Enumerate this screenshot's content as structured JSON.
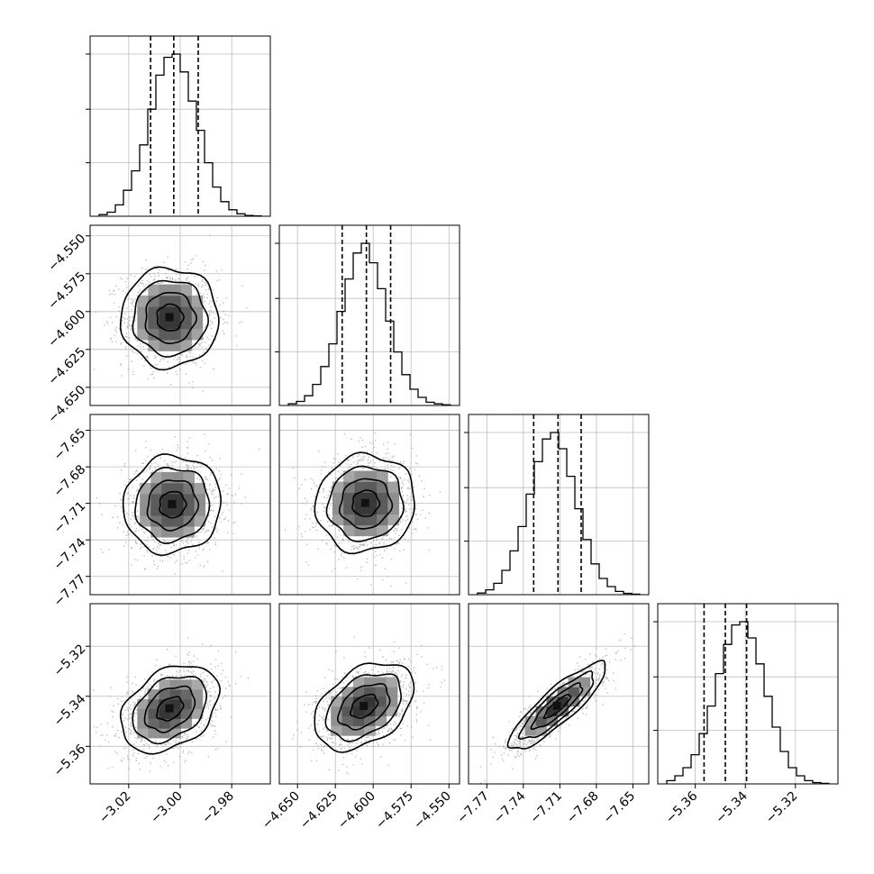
{
  "chart_data": {
    "type": "corner",
    "grid": true,
    "parameters": [
      {
        "range": [
          -3.035,
          -2.965
        ],
        "ticks": [
          -3.02,
          -3.0,
          -2.98
        ],
        "tick_labels": [
          "−3.02",
          "−3.00",
          "−2.98"
        ],
        "quantiles": [
          -3.0115,
          -3.0025,
          -2.993
        ],
        "hist_counts": [
          0.01,
          0.025,
          0.07,
          0.16,
          0.28,
          0.44,
          0.66,
          0.87,
          0.98,
          1.0,
          0.89,
          0.71,
          0.53,
          0.33,
          0.18,
          0.09,
          0.04,
          0.015,
          0.005,
          0.002
        ]
      },
      {
        "range": [
          -4.662,
          -4.543
        ],
        "ticks": [
          -4.65,
          -4.625,
          -4.6,
          -4.575,
          -4.55
        ],
        "tick_labels": [
          "−4.650",
          "−4.625",
          "−4.600",
          "−4.575",
          "−4.550"
        ],
        "quantiles": [
          -4.6205,
          -4.6045,
          -4.5885
        ],
        "hist_counts": [
          0.01,
          0.025,
          0.06,
          0.13,
          0.24,
          0.38,
          0.58,
          0.78,
          0.94,
          1.0,
          0.88,
          0.72,
          0.52,
          0.33,
          0.19,
          0.1,
          0.05,
          0.02,
          0.01,
          0.004
        ]
      },
      {
        "range": [
          -7.785,
          -7.637
        ],
        "ticks": [
          -7.77,
          -7.74,
          -7.71,
          -7.68,
          -7.65
        ],
        "tick_labels": [
          "−7.77",
          "−7.74",
          "−7.71",
          "−7.68",
          "−7.65"
        ],
        "quantiles": [
          -7.7315,
          -7.7115,
          -7.6925
        ],
        "hist_counts": [
          0.01,
          0.03,
          0.07,
          0.15,
          0.27,
          0.42,
          0.62,
          0.82,
          0.96,
          1.0,
          0.9,
          0.73,
          0.53,
          0.34,
          0.19,
          0.1,
          0.05,
          0.02,
          0.008,
          0.003
        ]
      },
      {
        "range": [
          -5.375,
          -5.303
        ],
        "ticks": [
          -5.36,
          -5.34,
          -5.32
        ],
        "tick_labels": [
          "−5.36",
          "−5.34",
          "−5.32"
        ],
        "quantiles": [
          -5.3565,
          -5.348,
          -5.3395
        ],
        "hist_counts": [
          0.02,
          0.05,
          0.1,
          0.18,
          0.31,
          0.48,
          0.68,
          0.86,
          0.98,
          1.0,
          0.9,
          0.74,
          0.54,
          0.35,
          0.2,
          0.1,
          0.05,
          0.02,
          0.008,
          0.003
        ]
      }
    ],
    "pairs": [
      {
        "row": 1,
        "col": 0,
        "center": [
          -3.004,
          -4.604
        ],
        "rho": 0.0
      },
      {
        "row": 2,
        "col": 0,
        "center": [
          -3.003,
          -7.711
        ],
        "rho": 0.05
      },
      {
        "row": 2,
        "col": 1,
        "center": [
          -4.605,
          -7.71
        ],
        "rho": 0.05
      },
      {
        "row": 3,
        "col": 0,
        "center": [
          -3.004,
          -5.345
        ],
        "rho": 0.35
      },
      {
        "row": 3,
        "col": 1,
        "center": [
          -4.606,
          -5.344
        ],
        "rho": 0.4
      },
      {
        "row": 3,
        "col": 2,
        "center": [
          -7.712,
          -5.344
        ],
        "rho": 0.87
      }
    ]
  }
}
